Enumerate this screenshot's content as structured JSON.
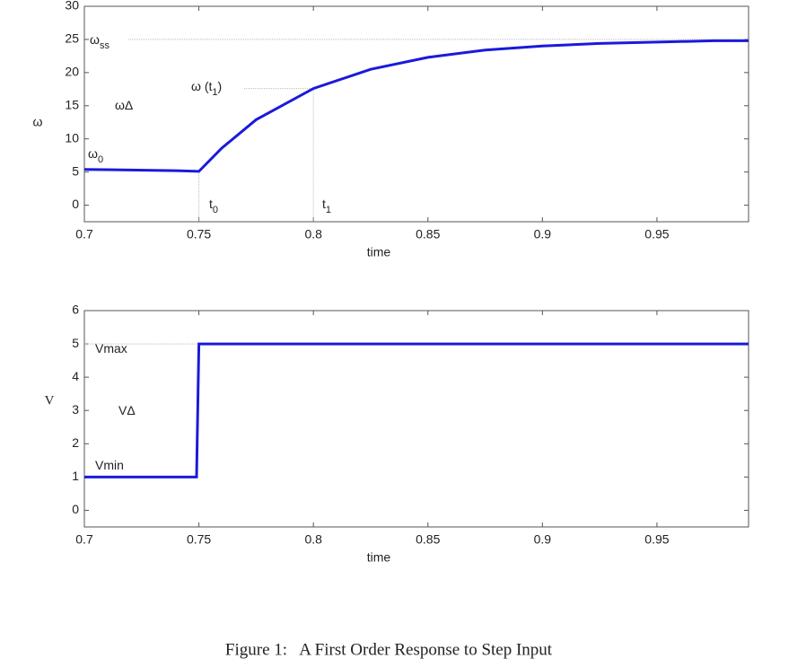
{
  "chart_data": [
    {
      "type": "line",
      "y_label": "ω",
      "x_label": "time",
      "x": [
        0.7,
        0.72,
        0.74,
        0.75,
        0.76,
        0.775,
        0.8,
        0.825,
        0.85,
        0.875,
        0.9,
        0.925,
        0.95,
        0.975,
        0.99
      ],
      "values": [
        5.4,
        5.3,
        5.2,
        5.1,
        8.6,
        12.9,
        17.6,
        20.5,
        22.3,
        23.4,
        24.0,
        24.4,
        24.6,
        24.8,
        24.8
      ],
      "color": "#1a1adb",
      "xlim": [
        0.7,
        0.99
      ],
      "xticks": [
        0.7,
        0.75,
        0.8,
        0.85,
        0.9,
        0.95
      ],
      "ylim": [
        -2.5,
        30
      ],
      "yticks": [
        0,
        5,
        10,
        15,
        20,
        25,
        30
      ],
      "hlines": [
        25,
        17.6
      ],
      "vlines": [
        0.75,
        0.8
      ],
      "annotations": [
        {
          "text": "ω",
          "sub": "ss"
        },
        {
          "text": "ω (t",
          "sub": "1",
          "tail": ")"
        },
        {
          "text": "ωΔ"
        },
        {
          "text": "ω",
          "sub": "0"
        },
        {
          "text": "t",
          "sub": "0"
        },
        {
          "text": "t",
          "sub": "1"
        }
      ]
    },
    {
      "type": "line",
      "y_label": "V",
      "x_label": "time",
      "x": [
        0.7,
        0.749,
        0.75,
        0.99
      ],
      "values": [
        1,
        1,
        5,
        5
      ],
      "color": "#1a1adb",
      "xlim": [
        0.7,
        0.99
      ],
      "xticks": [
        0.7,
        0.75,
        0.8,
        0.85,
        0.9,
        0.95
      ],
      "ylim": [
        -0.5,
        6
      ],
      "yticks": [
        0,
        1,
        2,
        3,
        4,
        5,
        6
      ],
      "hlines": [
        5
      ],
      "vlines": [],
      "annotations": [
        {
          "text": "Vmax"
        },
        {
          "text": "VΔ"
        },
        {
          "text": "Vmin"
        }
      ]
    }
  ],
  "caption": "Figure 1:   A First Order Response to Step Input"
}
